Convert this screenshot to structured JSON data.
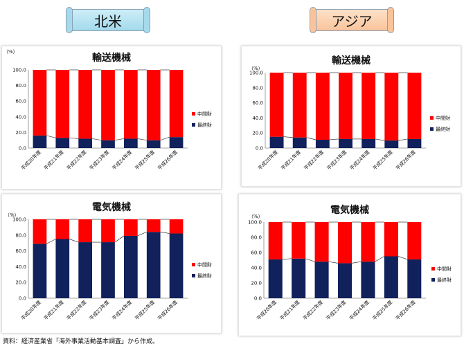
{
  "headers": {
    "north_america": "北米",
    "asia": "アジア"
  },
  "colors": {
    "intermediate": "#ff0000",
    "final": "#10215c"
  },
  "source": "資料：経済産業省「海外事業活動基本調査」から作成。",
  "chart_data": [
    {
      "id": "na-transport",
      "type": "bar",
      "title": "輸送機械",
      "ylabel": "（%）",
      "ylim": [
        0,
        100
      ],
      "yticks": [
        "0.0",
        "20.0",
        "40.0",
        "60.0",
        "80.0",
        "100.0"
      ],
      "categories": [
        "平成20年度",
        "平成21年度",
        "平成22年度",
        "平成23年度",
        "平成24年度",
        "平成25年度",
        "平成26年度"
      ],
      "series": [
        {
          "name": "最終財",
          "values": [
            16,
            13,
            12,
            10,
            12,
            10,
            14
          ]
        },
        {
          "name": "中間財",
          "values": [
            84,
            87,
            88,
            90,
            88,
            90,
            86
          ]
        }
      ],
      "legend": [
        "中間財",
        "最終財"
      ]
    },
    {
      "id": "asia-transport",
      "type": "bar",
      "title": "輸送機械",
      "ylabel": "（%）",
      "ylim": [
        0,
        100
      ],
      "yticks": [
        "0.0",
        "20.0",
        "40.0",
        "60.0",
        "80.0",
        "100.0"
      ],
      "categories": [
        "平成20年度",
        "平成21年度",
        "平成22年度",
        "平成23年度",
        "平成24年度",
        "平成25年度",
        "平成26年度"
      ],
      "series": [
        {
          "name": "最終財",
          "values": [
            15,
            14,
            11,
            12,
            12,
            10,
            12
          ]
        },
        {
          "name": "中間財",
          "values": [
            85,
            86,
            89,
            88,
            88,
            90,
            88
          ]
        }
      ],
      "legend": [
        "中間財",
        "最終財"
      ]
    },
    {
      "id": "na-electric",
      "type": "bar",
      "title": "電気機械",
      "ylabel": "（%）",
      "ylim": [
        0,
        100
      ],
      "yticks": [
        "0.0",
        "20.0",
        "40.0",
        "60.0",
        "80.0",
        "100.0"
      ],
      "categories": [
        "平成20年度",
        "平成21年度",
        "平成22年度",
        "平成23年度",
        "平成24年度",
        "平成25年度",
        "平成26年度"
      ],
      "series": [
        {
          "name": "最終財",
          "values": [
            69,
            75,
            71,
            71,
            79,
            84,
            82
          ]
        },
        {
          "name": "中間財",
          "values": [
            31,
            25,
            29,
            29,
            21,
            16,
            18
          ]
        }
      ],
      "legend": [
        "中間財",
        "最終財"
      ]
    },
    {
      "id": "asia-electric",
      "type": "bar",
      "title": "電気機械",
      "ylabel": "（%）",
      "ylim": [
        0,
        100
      ],
      "yticks": [
        "0.0",
        "20.0",
        "40.0",
        "60.0",
        "80.0",
        "100.0"
      ],
      "categories": [
        "平成20年度",
        "平成21年度",
        "平成22年度",
        "平成23年度",
        "平成24年度",
        "平成25年度",
        "平成26年度"
      ],
      "series": [
        {
          "name": "最終財",
          "values": [
            51,
            52,
            48,
            46,
            48,
            55,
            51
          ]
        },
        {
          "name": "中間財",
          "values": [
            49,
            48,
            52,
            54,
            52,
            45,
            49
          ]
        }
      ],
      "legend": [
        "中間財",
        "最終財"
      ]
    }
  ]
}
